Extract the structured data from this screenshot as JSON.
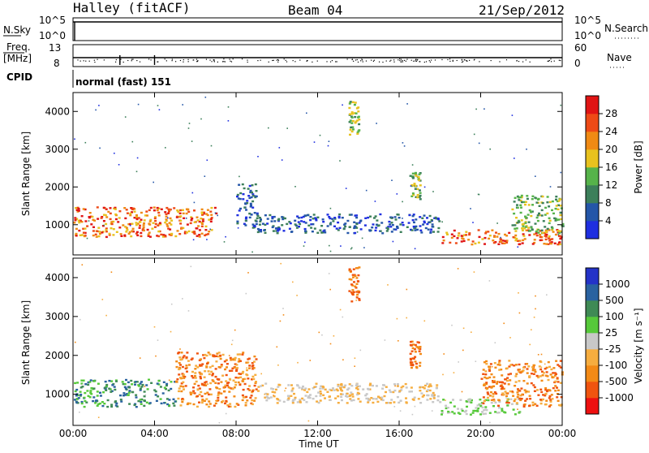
{
  "header": {
    "site": "Halley (fitACF)",
    "beam": "Beam 04",
    "date": "21/Sep/2012"
  },
  "top_panels": {
    "nsky_label": "N.Sky",
    "nsearch_label": "N.Search",
    "nsky_ticks": [
      "10^5",
      "10^0"
    ],
    "nsky_right_ticks": [
      "10^5",
      "10^0"
    ],
    "freq_label_1": "Freq.",
    "freq_label_2": "[MHz]",
    "freq_ticks": [
      "13",
      "8"
    ],
    "nave_label": "Nave",
    "nave_ticks": [
      "60",
      "0"
    ],
    "cpid_label": "CPID",
    "cpid_value": "normal (fast) 151"
  },
  "colors": {
    "power_scale": [
      "#1f2fe0",
      "#2456a8",
      "#3c7f5a",
      "#56b34a",
      "#e8c21e",
      "#f08a14",
      "#ee4a16",
      "#e01414"
    ],
    "velocity_scale": [
      "#ee1010",
      "#f0540f",
      "#f38a16",
      "#f6ad3f",
      "#c8c8c8",
      "#56c93a",
      "#3f8a55",
      "#2a62a0",
      "#2433c8"
    ]
  },
  "chart_data": [
    {
      "type": "heatmap",
      "quantity": "Power",
      "ylabel": "Slant Range [km]",
      "ylim": [
        200,
        4500
      ],
      "yticks": [
        "4000",
        "3000",
        "2000",
        "1000"
      ],
      "x_ticks": [
        "00:00",
        "04:00",
        "08:00",
        "12:00",
        "16:00",
        "20:00",
        "00:00"
      ],
      "colorbar_label": "Power [dB]",
      "colorbar_ticks": [
        "28",
        "24",
        "20",
        "16",
        "12",
        "8",
        "4"
      ],
      "features": [
        {
          "hours": [
            0,
            7
          ],
          "range_km": [
            700,
            1500
          ],
          "level": "strong (20-30 dB)"
        },
        {
          "hours": [
            8,
            9
          ],
          "range_km": [
            900,
            2100
          ],
          "level": "weak (4-8 dB)"
        },
        {
          "hours": [
            9,
            18
          ],
          "range_km": [
            800,
            1300
          ],
          "level": "weak (4-8 dB)"
        },
        {
          "hours": [
            13.5,
            14
          ],
          "range_km": [
            3400,
            4300
          ],
          "level": "moderate (8-16 dB)"
        },
        {
          "hours": [
            16.5,
            17
          ],
          "range_km": [
            1700,
            2400
          ],
          "level": "moderate (8-16 dB)"
        },
        {
          "hours": [
            18,
            24
          ],
          "range_km": [
            500,
            900
          ],
          "level": "strong (20-30 dB)"
        },
        {
          "hours": [
            21.5,
            24
          ],
          "range_km": [
            800,
            1800
          ],
          "level": "moderate (8-16 dB)"
        }
      ]
    },
    {
      "type": "heatmap",
      "quantity": "Velocity",
      "ylabel": "Slant Range [km]",
      "ylim": [
        200,
        4500
      ],
      "yticks": [
        "4000",
        "3000",
        "2000",
        "1000"
      ],
      "x_ticks": [
        "00:00",
        "04:00",
        "08:00",
        "12:00",
        "16:00",
        "20:00",
        "00:00"
      ],
      "xlabel": "Time UT",
      "colorbar_label": "Velocity [m s⁻¹]",
      "colorbar_ticks": [
        "1000",
        "500",
        "100",
        "25",
        "-25",
        "-100",
        "-500",
        "-1000"
      ],
      "features": [
        {
          "hours": [
            0,
            5
          ],
          "range_km": [
            700,
            1400
          ],
          "velocity_ms": "+100 to +500"
        },
        {
          "hours": [
            5,
            9
          ],
          "range_km": [
            700,
            2100
          ],
          "velocity_ms": "-100 to -500"
        },
        {
          "hours": [
            9,
            18
          ],
          "range_km": [
            800,
            1300
          ],
          "velocity_ms": "-25 to +25"
        },
        {
          "hours": [
            13.5,
            14
          ],
          "range_km": [
            3400,
            4300
          ],
          "velocity_ms": "-500"
        },
        {
          "hours": [
            16.5,
            17
          ],
          "range_km": [
            1700,
            2400
          ],
          "velocity_ms": "-500"
        },
        {
          "hours": [
            18,
            22
          ],
          "range_km": [
            500,
            900
          ],
          "velocity_ms": "-25 to +100"
        },
        {
          "hours": [
            20,
            24
          ],
          "range_km": [
            700,
            1900
          ],
          "velocity_ms": "-100 to -500"
        }
      ]
    }
  ]
}
